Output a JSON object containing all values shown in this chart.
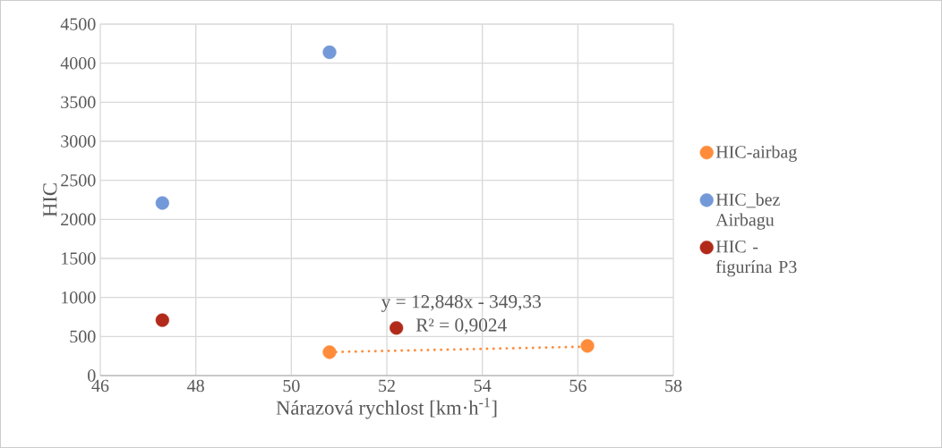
{
  "chart_data": {
    "type": "scatter",
    "xlabel": "Nárazová rychlost [km·h$^{-1}$]",
    "ylabel": "HIC",
    "xlim": [
      46,
      58
    ],
    "xticks": [
      46,
      48,
      50,
      52,
      54,
      56,
      58
    ],
    "ylim": [
      0,
      4500
    ],
    "yticks": [
      0,
      500,
      1000,
      1500,
      2000,
      2500,
      3000,
      3500,
      4000,
      4500
    ],
    "grid": true,
    "legend": "right",
    "marker": "circle",
    "series": [
      {
        "name": "HIC-airbag",
        "color": "#ff8c3a",
        "x": [
          50.8,
          56.2
        ],
        "values": [
          300,
          380
        ]
      },
      {
        "name": "HIC_bez Airbagu",
        "color": "#7399d8",
        "x": [
          47.3,
          50.8
        ],
        "values": [
          2210,
          4140
        ]
      },
      {
        "name": "HIC - figurína P3",
        "color": "#b12a1a",
        "x": [
          47.3,
          52.2
        ],
        "values": [
          710,
          610
        ]
      },
      {
        "type": "line",
        "color": "#ff8c3a",
        "line_style": "dotted",
        "marker": "none",
        "x": [
          50.8,
          56.2
        ],
        "values": [
          300,
          370
        ]
      }
    ],
    "annotations": [
      "y = 12,848x - 349,33",
      "R² = 0,9024"
    ]
  }
}
